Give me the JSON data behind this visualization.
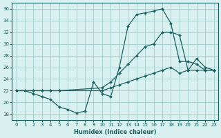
{
  "xlabel": "Humidex (Indice chaleur)",
  "ylabel": "",
  "bg_color": "#d8f0f0",
  "grid_color": "#a8d0d0",
  "line_color": "#1a6060",
  "xlim": [
    -0.5,
    23.5
  ],
  "ylim": [
    17,
    37
  ],
  "xticks": [
    0,
    1,
    2,
    3,
    4,
    5,
    6,
    7,
    8,
    9,
    10,
    11,
    12,
    13,
    14,
    15,
    16,
    17,
    18,
    19,
    20,
    21,
    22,
    23
  ],
  "yticks": [
    18,
    20,
    22,
    24,
    26,
    28,
    30,
    32,
    34,
    36
  ],
  "line1_x": [
    0,
    1,
    2,
    3,
    4,
    5,
    6,
    7,
    8,
    9,
    10,
    11,
    12,
    13,
    14,
    15,
    16,
    17,
    18,
    19,
    20,
    21,
    22,
    23
  ],
  "line1_y": [
    22,
    22,
    21.5,
    21,
    20.5,
    19.2,
    18.8,
    18.2,
    18.5,
    23.5,
    21.5,
    21,
    26,
    33,
    35,
    35.3,
    35.6,
    36,
    33.5,
    27,
    27,
    26.5,
    25.5,
    25.5
  ],
  "line2_x": [
    0,
    2,
    3,
    4,
    5,
    10,
    11,
    12,
    13,
    14,
    15,
    16,
    17,
    18,
    19,
    20,
    21,
    22,
    23
  ],
  "line2_y": [
    22,
    22,
    22,
    22,
    22,
    22.5,
    23.5,
    25,
    26.5,
    28,
    29.5,
    30,
    32,
    32,
    31.5,
    25.5,
    27.5,
    26,
    25.5
  ],
  "line3_x": [
    0,
    2,
    3,
    4,
    5,
    10,
    11,
    12,
    13,
    14,
    15,
    16,
    17,
    18,
    19,
    20,
    21,
    22,
    23
  ],
  "line3_y": [
    22,
    22,
    22,
    22,
    22,
    22,
    22.5,
    23,
    23.5,
    24,
    24.5,
    25,
    25.5,
    26,
    25,
    25.5,
    25.5,
    25.5,
    25.5
  ]
}
